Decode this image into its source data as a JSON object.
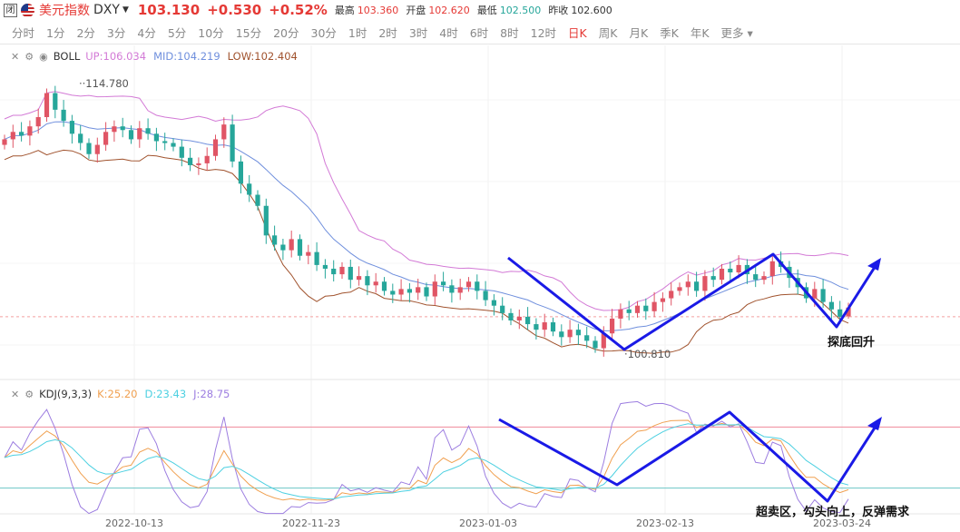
{
  "header": {
    "closed_badge": "闭",
    "name": "美元指数",
    "symbol": "DXY",
    "price": "103.130",
    "change": "+0.530",
    "change_pct": "+0.52%",
    "high_label": "最高",
    "high": "103.360",
    "open_label": "开盘",
    "open": "102.620",
    "low_label": "最低",
    "low": "102.500",
    "prev_label": "昨收",
    "prev": "102.600"
  },
  "tabs": [
    "分时",
    "1分",
    "2分",
    "3分",
    "4分",
    "5分",
    "10分",
    "15分",
    "20分",
    "30分",
    "1时",
    "2时",
    "3时",
    "4时",
    "6时",
    "8时",
    "12时",
    "日K",
    "周K",
    "月K",
    "季K",
    "年K",
    "更多"
  ],
  "active_tab": "日K",
  "boll_legend": {
    "name": "BOLL",
    "up_label": "UP:",
    "up": "106.034",
    "mid_label": "MID:",
    "mid": "104.219",
    "low_label": "LOW:",
    "low": "102.404"
  },
  "kdj_legend": {
    "name": "KDJ(9,3,3)",
    "k_label": "K:",
    "k": "25.20",
    "d_label": "D:",
    "d": "23.43",
    "j_label": "J:",
    "j": "28.75"
  },
  "annotations": {
    "price_high": "114.780",
    "price_low": "100.810",
    "main_note": "探底回升",
    "kdj_note": "超卖区，勾头向上，反弹需求"
  },
  "colors": {
    "up": "#e05565",
    "down": "#26a69a",
    "boll_up": "#d37ad6",
    "boll_mid": "#6f8fdd",
    "boll_low": "#a0522d",
    "k": "#f0a050",
    "d": "#4dd0e1",
    "j": "#9c7de0",
    "annotation": "#1a1ae6"
  },
  "chart_data": {
    "type": "candlestick",
    "x_ticks": [
      "2022-10-13",
      "2022-11-23",
      "2023-01-03",
      "2023-02-13",
      "2023-03-24"
    ],
    "price_markers": {
      "high": 114.78,
      "low": 100.81
    },
    "latest": {
      "close": 103.13,
      "open": 102.62,
      "high": 103.36,
      "low": 102.5
    },
    "boll": {
      "up": 106.034,
      "mid": 104.219,
      "low": 102.404
    },
    "kdj": {
      "k": 25.2,
      "d": 23.43,
      "j": 28.75
    },
    "closes": [
      112.2,
      112.6,
      112.4,
      112.9,
      113.4,
      114.7,
      113.8,
      113.2,
      112.5,
      112.0,
      111.4,
      111.9,
      112.6,
      112.9,
      112.7,
      112.2,
      112.8,
      112.5,
      112.1,
      112.0,
      111.8,
      111.2,
      110.8,
      110.9,
      111.3,
      112.2,
      113.0,
      111.0,
      109.8,
      109.2,
      108.6,
      107.0,
      106.5,
      106.2,
      106.8,
      105.9,
      106.1,
      105.4,
      105.2,
      104.9,
      105.3,
      104.6,
      104.8,
      104.3,
      104.5,
      104.0,
      103.8,
      104.1,
      103.9,
      104.2,
      103.7,
      104.5,
      104.3,
      103.9,
      104.2,
      104.5,
      104.0,
      103.5,
      103.2,
      102.8,
      102.4,
      102.6,
      102.2,
      101.9,
      102.3,
      101.8,
      101.5,
      101.9,
      101.6,
      101.3,
      100.9,
      101.7,
      102.5,
      103.0,
      102.8,
      103.2,
      102.9,
      103.4,
      103.6,
      104.0,
      104.2,
      104.5,
      104.0,
      104.8,
      104.6,
      105.2,
      105.0,
      105.4,
      104.9,
      104.6,
      104.8,
      105.6,
      105.3,
      104.7,
      104.2,
      103.6,
      104.1,
      103.4,
      103.0,
      102.6,
      103.1
    ]
  }
}
